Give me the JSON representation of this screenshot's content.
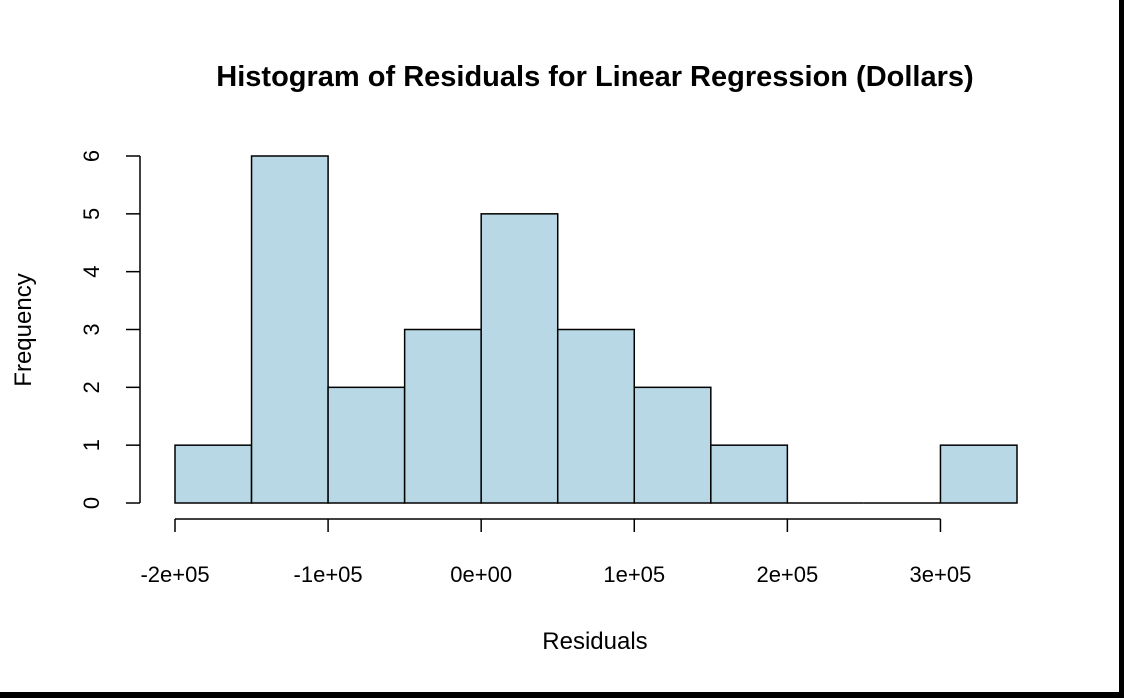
{
  "chart_data": {
    "type": "bar",
    "title": "Histogram of Residuals for Linear Regression (Dollars)",
    "xlabel": "Residuals",
    "ylabel": "Frequency",
    "bin_edges": [
      -200000,
      -150000,
      -100000,
      -50000,
      0,
      50000,
      100000,
      150000,
      200000,
      250000,
      300000,
      350000
    ],
    "values": [
      1,
      6,
      2,
      3,
      5,
      3,
      2,
      1,
      0,
      0,
      1
    ],
    "x_ticks": [
      -200000,
      -100000,
      0,
      100000,
      200000,
      300000
    ],
    "x_tick_labels": [
      "-2e+05",
      "-1e+05",
      "0e+00",
      "1e+05",
      "2e+05",
      "3e+05"
    ],
    "y_ticks": [
      0,
      1,
      2,
      3,
      4,
      5,
      6
    ],
    "y_tick_labels": [
      "0",
      "1",
      "2",
      "3",
      "4",
      "5",
      "6"
    ],
    "xlim": [
      -200000,
      350000
    ],
    "ylim": [
      0,
      6
    ],
    "bar_color": "#b7d8e4",
    "bar_border_color": "#000000",
    "grid": false
  }
}
